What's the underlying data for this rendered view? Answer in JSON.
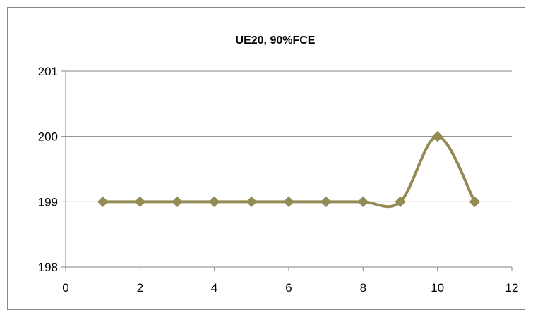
{
  "chart_data": {
    "type": "line",
    "title": "UE20, 90%FCE",
    "xlabel": "",
    "ylabel": "",
    "xlim": [
      0,
      12
    ],
    "ylim": [
      198,
      201
    ],
    "x_ticks": [
      "0",
      "2",
      "4",
      "6",
      "8",
      "10",
      "12"
    ],
    "y_ticks": [
      "198",
      "199",
      "200",
      "201"
    ],
    "grid": "horizontal",
    "legend": "none",
    "smoothed": true,
    "marker": "diamond",
    "series": [
      {
        "color": "#948A54",
        "x": [
          1,
          2,
          3,
          4,
          5,
          6,
          7,
          8,
          9,
          10,
          11
        ],
        "values": [
          199,
          199,
          199,
          199,
          199,
          199,
          199,
          199,
          199,
          200,
          199
        ]
      }
    ]
  }
}
